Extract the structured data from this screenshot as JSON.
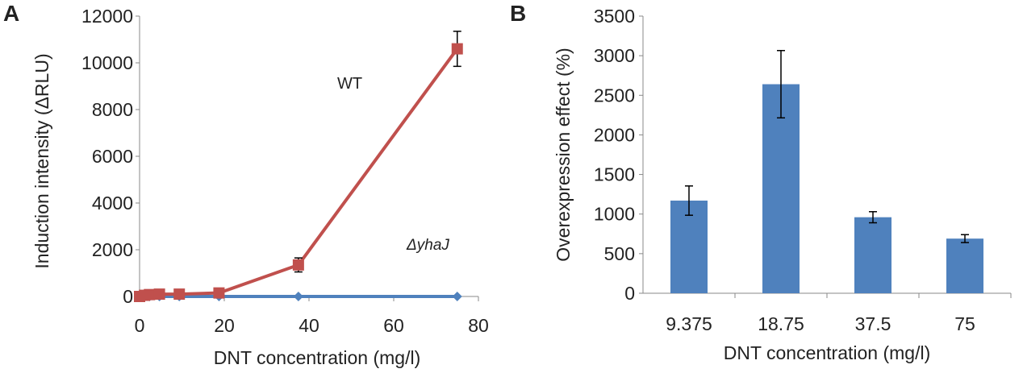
{
  "chart_data": [
    {
      "panel": "A",
      "type": "line",
      "xlabel": "DNT concentration (mg/l)",
      "ylabel": "Induction intensity (ΔRLU)",
      "xlim": [
        0,
        80
      ],
      "ylim": [
        0,
        12000
      ],
      "xticks": [
        "0",
        "20",
        "40",
        "60",
        "80"
      ],
      "yticks": [
        "0",
        "2000",
        "4000",
        "6000",
        "8000",
        "10000",
        "12000"
      ],
      "x": [
        0,
        1.17,
        2.34,
        4.69,
        9.375,
        18.75,
        37.5,
        75
      ],
      "series": [
        {
          "name": "WT",
          "color": "#c0504d",
          "marker": "square",
          "values": [
            0,
            50,
            80,
            100,
            100,
            150,
            1350,
            10600
          ],
          "errors": [
            0,
            0,
            0,
            0,
            0,
            0,
            300,
            750
          ]
        },
        {
          "name": "ΔyhaJ",
          "color": "#4f81bd",
          "marker": "diamond",
          "values": [
            0,
            0,
            0,
            0,
            0,
            0,
            0,
            0
          ],
          "errors": [
            0,
            0,
            0,
            0,
            0,
            0,
            0,
            0
          ]
        }
      ]
    },
    {
      "panel": "B",
      "type": "bar",
      "xlabel": "DNT concentration (mg/l)",
      "ylabel": "Overexpression effect (%)",
      "ylim": [
        0,
        3500
      ],
      "yticks": [
        "0",
        "500",
        "1000",
        "1500",
        "2000",
        "2500",
        "3000",
        "3500"
      ],
      "categories": [
        "9.375",
        "18.75",
        "37.5",
        "75"
      ],
      "values": [
        1170,
        2640,
        960,
        690
      ],
      "errors": [
        185,
        425,
        70,
        50
      ],
      "color": "#4f81bd"
    }
  ]
}
